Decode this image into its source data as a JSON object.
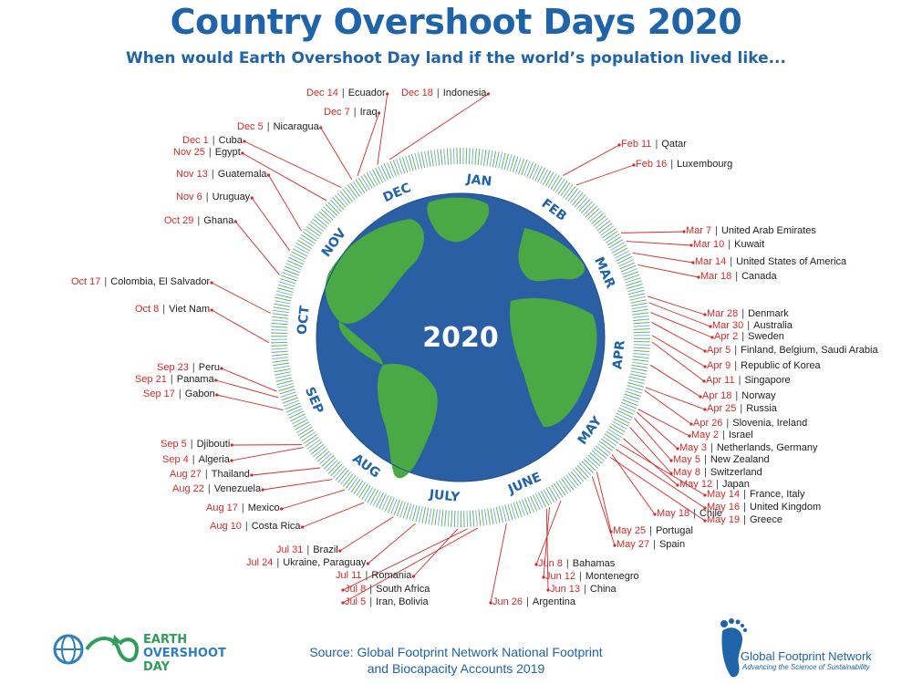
{
  "header": {
    "title": "Country Overshoot Days 2020",
    "subtitle": "When would Earth Overshoot Day land if the world’s population lived like..."
  },
  "globe": {
    "year": "2020"
  },
  "months": [
    "JAN",
    "FEB",
    "MAR",
    "APR",
    "MAY",
    "JUNE",
    "JULY",
    "AUG",
    "SEP",
    "OCT",
    "NOV",
    "DEC"
  ],
  "colors": {
    "title_blue": "#1f63a8",
    "date_red": "#d42a2a",
    "ocean": "#2a5fa3",
    "land": "#4aa845",
    "ticks_green": "#3fa24a",
    "ticks_blue": "#5aa0d0"
  },
  "entries": [
    {
      "date": "Dec 14",
      "country": "Ecuador"
    },
    {
      "date": "Dec 18",
      "country": "Indonesia"
    },
    {
      "date": "Dec 7",
      "country": "Iraq"
    },
    {
      "date": "Dec 5",
      "country": "Nicaragua"
    },
    {
      "date": "Dec 1",
      "country": "Cuba"
    },
    {
      "date": "Nov 25",
      "country": "Egypt"
    },
    {
      "date": "Nov 13",
      "country": "Guatemala"
    },
    {
      "date": "Nov 6",
      "country": "Uruguay"
    },
    {
      "date": "Oct 29",
      "country": "Ghana"
    },
    {
      "date": "Oct 17",
      "country": "Colombia, El Salvador"
    },
    {
      "date": "Oct 8",
      "country": "Viet Nam"
    },
    {
      "date": "Sep 23",
      "country": "Peru"
    },
    {
      "date": "Sep 21",
      "country": "Panama"
    },
    {
      "date": "Sep 17",
      "country": "Gabon"
    },
    {
      "date": "Sep 5",
      "country": "Djibouti"
    },
    {
      "date": "Sep 4",
      "country": "Algeria"
    },
    {
      "date": "Aug 27",
      "country": "Thailand"
    },
    {
      "date": "Aug 22",
      "country": "Venezuela"
    },
    {
      "date": "Aug 17",
      "country": "Mexico"
    },
    {
      "date": "Aug 10",
      "country": "Costa Rica"
    },
    {
      "date": "Jul 31",
      "country": "Brazil"
    },
    {
      "date": "Jul 24",
      "country": "Ukraine, Paraguay"
    },
    {
      "date": "Jul 11",
      "country": "Romania"
    },
    {
      "date": "Jul 8",
      "country": "South Africa"
    },
    {
      "date": "Jul 5",
      "country": "Iran, Bolivia"
    },
    {
      "date": "Jun 26",
      "country": "Argentina"
    },
    {
      "date": "Jun 8",
      "country": "Bahamas"
    },
    {
      "date": "Jun 12",
      "country": "Montenegro"
    },
    {
      "date": "Jun 13",
      "country": "China"
    },
    {
      "date": "May 25",
      "country": "Portugal"
    },
    {
      "date": "May 27",
      "country": "Spain"
    },
    {
      "date": "May 18",
      "country": "Chile"
    },
    {
      "date": "May 14",
      "country": "France, Italy"
    },
    {
      "date": "May 16",
      "country": "United Kingdom"
    },
    {
      "date": "May 19",
      "country": "Greece"
    },
    {
      "date": "May 12",
      "country": "Japan"
    },
    {
      "date": "May 8",
      "country": "Switzerland"
    },
    {
      "date": "May 5",
      "country": "New Zealand"
    },
    {
      "date": "May 3",
      "country": "Netherlands, Germany"
    },
    {
      "date": "May 2",
      "country": "Israel"
    },
    {
      "date": "Apr 26",
      "country": "Slovenia, Ireland"
    },
    {
      "date": "Apr 25",
      "country": "Russia"
    },
    {
      "date": "Apr 18",
      "country": "Norway"
    },
    {
      "date": "Apr 11",
      "country": "Singapore"
    },
    {
      "date": "Apr 9",
      "country": "Republic of Korea"
    },
    {
      "date": "Apr 5",
      "country": "Finland, Belgium, Saudi Arabia"
    },
    {
      "date": "Apr 2",
      "country": "Sweden"
    },
    {
      "date": "Mar 30",
      "country": "Australia"
    },
    {
      "date": "Mar 28",
      "country": "Denmark"
    },
    {
      "date": "Mar 18",
      "country": "Canada"
    },
    {
      "date": "Mar 14",
      "country": "United States of America"
    },
    {
      "date": "Mar 10",
      "country": "Kuwait"
    },
    {
      "date": "Mar 7",
      "country": "United Arab Emirates"
    },
    {
      "date": "Feb 16",
      "country": "Luxembourg"
    },
    {
      "date": "Feb 11",
      "country": "Qatar"
    }
  ],
  "footer": {
    "source_line1": "Source: Global Footprint Network National Footprint",
    "source_line2": "and Biocapacity Accounts 2019",
    "eo_line1": "EARTH",
    "eo_line2": "OVERSHOOT",
    "eo_line3": "DAY",
    "gfn_name": "Global Footprint Network",
    "gfn_tagline": "Advancing the Science of Sustainability"
  }
}
